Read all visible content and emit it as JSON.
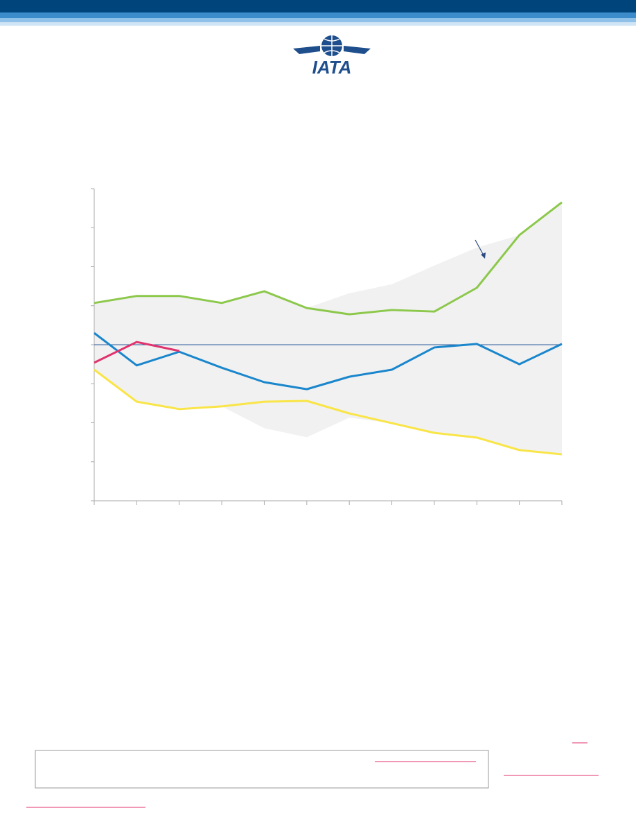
{
  "logo": {
    "text": "IATA"
  },
  "chart_data": {
    "type": "line",
    "x": [
      0,
      1,
      2,
      3,
      4,
      5,
      6,
      7,
      8,
      9,
      10,
      11
    ],
    "xlim": [
      0,
      11
    ],
    "xticks": [
      0,
      1,
      2,
      3,
      4,
      5,
      6,
      7,
      8,
      9,
      10,
      11
    ],
    "ylim": [
      -4,
      4
    ],
    "yticks": [
      -4,
      -3,
      -2,
      -1,
      0,
      1,
      2,
      3,
      4
    ],
    "reference_line": 0,
    "reference_color": "#2b5a9a",
    "band": {
      "color": "#f1f1f1",
      "upper": [
        1.07,
        1.25,
        1.25,
        1.07,
        1.37,
        0.94,
        1.32,
        1.55,
        2.03,
        2.49,
        2.81,
        3.65
      ],
      "lower": [
        -0.64,
        -1.46,
        -1.65,
        -1.58,
        -2.14,
        -2.37,
        -1.87,
        -2.01,
        -2.26,
        -2.38,
        -2.7,
        -2.81
      ]
    },
    "series": [
      {
        "color": "#8cc84b",
        "values": [
          1.07,
          1.25,
          1.25,
          1.07,
          1.37,
          0.94,
          0.78,
          0.89,
          0.85,
          1.46,
          2.81,
          3.65
        ]
      },
      {
        "color": "#1a86cc",
        "values": [
          0.3,
          -0.53,
          -0.18,
          -0.59,
          -0.96,
          -1.14,
          -0.82,
          -0.64,
          -0.07,
          0.02,
          -0.5,
          0.02
        ]
      },
      {
        "color": "#e0336e",
        "values": [
          -0.46,
          0.07,
          -0.16,
          null,
          null,
          null,
          null,
          null,
          null,
          null,
          null,
          null
        ]
      },
      {
        "color": "#f9e547",
        "values": [
          -0.64,
          -1.46,
          -1.65,
          -1.58,
          -1.46,
          -1.44,
          -1.76,
          -2.01,
          -2.26,
          -2.38,
          -2.7,
          -2.81
        ]
      }
    ]
  }
}
